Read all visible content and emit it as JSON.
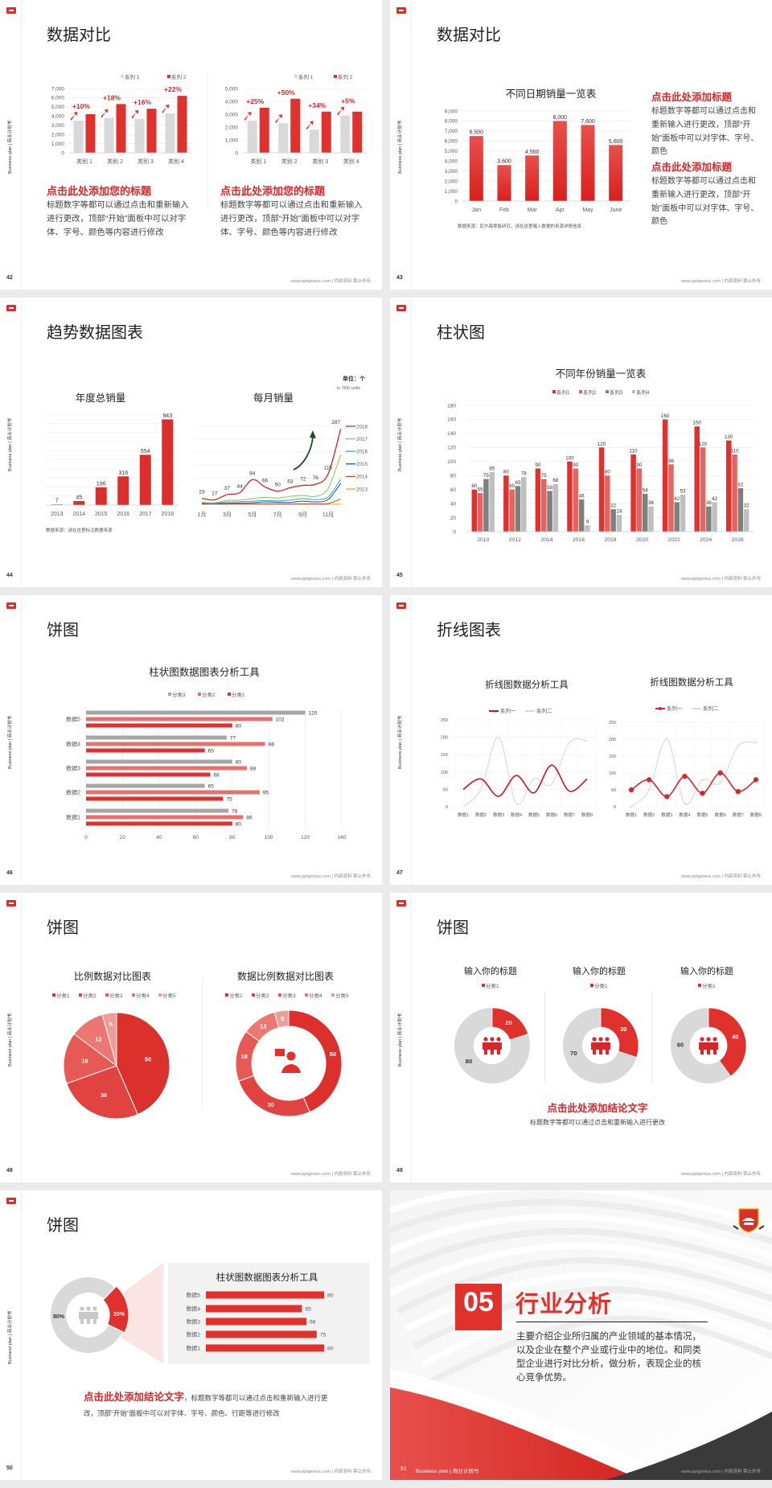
{
  "deck": {
    "sidebar": "Business plan | 商业计划书",
    "footer": "www.pptgenius.com | 内部资料 禁止外传",
    "colors": {
      "accent": "#e0312d",
      "gray": "#d9d9d9",
      "dark": "#3a3a3a"
    }
  },
  "slides": [
    {
      "page": "42",
      "title": "数据对比",
      "heading_left": "点击此处添加您的标题",
      "body_left": "标题数字等都可以通过点击和重新输入进行更改，顶部“开始”面板中可以对字体、字号、颜色等内容进行修改",
      "heading_right": "点击此处添加您的标题",
      "body_right": "标题数字等都可以通过点击和重新输入进行更改，顶部“开始”面板中可以对字体、字号、颜色等内容进行修改"
    },
    {
      "page": "43",
      "title": "数据对比",
      "heading_1": "点击此处添加标题",
      "body_1": "标题数字等都可以通过点击和重新输入进行更改，顶部“开始”面板中可以对字体、字号、颜色",
      "heading_2": "点击此处添加标题",
      "body_2": "标题数字等都可以通过点击和重新输入进行更改，顶部“开始”面板中可以对字体、字号、颜色",
      "source": "数据来源：尼尔森零售研究，请在这里输入数据的来源详情信息"
    },
    {
      "page": "44",
      "title": "趋势数据图表",
      "unit": "单位：个",
      "unit_sub": "in '000 units",
      "source": "数据来源：请在这里标注数据来源"
    },
    {
      "page": "45",
      "title": "柱状图"
    },
    {
      "page": "46",
      "title": "饼图"
    },
    {
      "page": "47",
      "title": "折线图表"
    },
    {
      "page": "48",
      "title": "饼图"
    },
    {
      "page": "49",
      "title": "饼图",
      "conclusion": "点击此处添加结论文字",
      "conclusion_body": "标题数字等都可以通过点击和重新输入进行更改"
    },
    {
      "page": "50",
      "title": "饼图",
      "conclusion": "点击此处添加结论文字",
      "conclusion_body": "，标题数字等都可以通过点击和重新输入进行更改，顶部“开始”面板中可以对字体、字号、颜色、行距等进行修改"
    },
    {
      "page": "51",
      "section_number": "05",
      "title": "行业分析",
      "body": "主要介绍企业所归属的产业领域的基本情况，以及企业在整个产业或行业中的地位。和同类型企业进行对比分析，做分析，表现企业的核心竞争优势。",
      "footer_label": "Business plan | 商业计划书"
    }
  ],
  "chart_data": [
    {
      "type": "bar",
      "categories": [
        "类别 1",
        "类别 2",
        "类别 3",
        "类别 4"
      ],
      "series": [
        {
          "name": "系列 1",
          "color": "#d9d9d9",
          "values": [
            3500,
            3800,
            3700,
            4300
          ]
        },
        {
          "name": "系列 2",
          "color": "#e0312d",
          "values": [
            4200,
            5300,
            4800,
            6200
          ]
        }
      ],
      "ylim": [
        0,
        7000
      ],
      "y_ticks": [
        "0",
        "1,000",
        "2,000",
        "3,000",
        "4,000",
        "5,000",
        "6,000",
        "7,000"
      ],
      "annotations": [
        "+10%",
        "+18%",
        "+16%",
        "+22%"
      ],
      "legend": "top-right",
      "grid": true
    },
    {
      "type": "bar",
      "categories": [
        "类别 1",
        "类别 2",
        "类别 3",
        "类别 4"
      ],
      "series": [
        {
          "name": "系列 1",
          "color": "#d9d9d9",
          "values": [
            2500,
            2300,
            1800,
            2900
          ]
        },
        {
          "name": "系列 2",
          "color": "#e0312d",
          "values": [
            3500,
            4200,
            3200,
            3200
          ]
        }
      ],
      "ylim": [
        0,
        5000
      ],
      "y_ticks": [
        "0",
        "1,000",
        "2,000",
        "3,000",
        "4,000",
        "5,000"
      ],
      "annotations": [
        "+25%",
        "+50%",
        "+34%",
        "+5%"
      ],
      "legend": "top-right",
      "grid": true
    },
    {
      "type": "bar",
      "title": "不同日期销量一览表",
      "categories": [
        "Jan",
        "Feb",
        "Mar",
        "Apr",
        "May",
        "June"
      ],
      "series": [
        {
          "color": "#e0312d",
          "values": [
            6500,
            3600,
            4560,
            8000,
            7600,
            5600
          ],
          "data_labels": [
            "6,500",
            "3,600",
            "4,560",
            "8,000",
            "7,600",
            "5,600"
          ]
        }
      ],
      "ylim": [
        0,
        9000
      ],
      "y_ticks": [
        "0",
        "1,000",
        "2,000",
        "3,000",
        "4,000",
        "5,000",
        "6,000",
        "7,000",
        "8,000",
        "9,000"
      ],
      "grid": true
    },
    {
      "type": "bar",
      "title": "年度总销量",
      "categories": [
        "2013",
        "2014",
        "2015",
        "2016",
        "2017",
        "2018"
      ],
      "series": [
        {
          "color": "#dc2f2b",
          "values": [
            7,
            45,
            196,
            316,
            554,
            943
          ],
          "data_labels": [
            "7",
            "45",
            "196",
            "316",
            "554",
            "943"
          ]
        }
      ],
      "ylim": [
        0,
        1000
      ],
      "grid": true
    },
    {
      "type": "line",
      "title": "每月销量",
      "x_ticks": [
        "1月",
        "3月",
        "5月",
        "7月",
        "9月",
        "11月"
      ],
      "series": [
        {
          "name": "2018",
          "color": "#d7262b",
          "values": [
            23,
            17,
            37,
            44,
            94,
            66,
            50,
            63,
            72,
            76,
            115,
            287
          ],
          "data_labels": [
            "23",
            "17",
            "37",
            "44",
            "94",
            "66",
            "50",
            "63",
            "72",
            "76",
            "115",
            "287"
          ]
        },
        {
          "name": "2017",
          "color": "#8dc63f",
          "values": [
            8,
            6,
            15,
            16,
            22,
            26,
            24,
            30,
            34,
            30,
            60,
            190
          ]
        },
        {
          "name": "2016",
          "color": "#29abe2",
          "values": [
            5,
            4,
            9,
            10,
            12,
            14,
            13,
            16,
            22,
            18,
            28,
            95
          ]
        },
        {
          "name": "2015",
          "color": "#1f4e9c",
          "values": [
            3,
            3,
            4,
            5,
            6,
            9,
            8,
            7,
            12,
            9,
            18,
            80
          ]
        },
        {
          "name": "2014",
          "color": "#b5502e",
          "values": [
            1,
            1,
            1,
            1,
            2,
            2,
            2,
            1,
            2,
            2,
            3,
            20
          ]
        },
        {
          "name": "2013",
          "color": "#f7a823",
          "values": [
            0,
            0,
            0,
            0,
            0,
            0,
            0,
            0,
            0,
            0,
            0,
            1
          ]
        }
      ],
      "legend": "right",
      "grid": true
    },
    {
      "type": "bar",
      "title": "不同年份销量一览表",
      "categories": [
        "2010",
        "2012",
        "2014",
        "2016",
        "2018",
        "2020",
        "2022",
        "2024",
        "2026"
      ],
      "series": [
        {
          "name": "系列1",
          "color": "#e0312d",
          "values": [
            60,
            80,
            90,
            100,
            120,
            110,
            160,
            150,
            130
          ]
        },
        {
          "name": "系列2",
          "color": "#e8625e",
          "values": [
            55,
            60,
            75,
            90,
            80,
            90,
            96,
            120,
            110
          ]
        },
        {
          "name": "系列3",
          "color": "#7f7f7f",
          "values": [
            75,
            65,
            58,
            46,
            32,
            54,
            42,
            36,
            62
          ]
        },
        {
          "name": "系列4",
          "color": "#bfbfbf",
          "values": [
            85,
            78,
            68,
            9,
            24,
            36,
            53,
            42,
            32
          ]
        }
      ],
      "ylim": [
        0,
        180
      ],
      "y_ticks": [
        "0",
        "20",
        "40",
        "60",
        "80",
        "100",
        "120",
        "140",
        "160",
        "180"
      ],
      "legend": "top",
      "grid": true
    },
    {
      "type": "bar",
      "orientation": "horizontal",
      "title": "柱状图数据图表分析工具",
      "categories": [
        "数据1",
        "数据2",
        "数据3",
        "数据4",
        "数据5"
      ],
      "series": [
        {
          "name": "分类1",
          "color": "#e0312d",
          "values": [
            80,
            75,
            68,
            65,
            80
          ]
        },
        {
          "name": "分类2",
          "color": "#e8706c",
          "values": [
            86,
            95,
            88,
            98,
            102
          ]
        },
        {
          "name": "分类3",
          "color": "#a6a6a6",
          "values": [
            78,
            65,
            80,
            77,
            120
          ]
        }
      ],
      "xlim": [
        0,
        140
      ],
      "x_ticks": [
        "0",
        "20",
        "40",
        "60",
        "80",
        "100",
        "120",
        "140"
      ],
      "legend": "top",
      "grid": true
    },
    {
      "type": "line",
      "title": "折线图数据分析工具",
      "categories": [
        "数据1",
        "数据2",
        "数据3",
        "数据4",
        "数据5",
        "数据6",
        "数据7",
        "数据8"
      ],
      "series": [
        {
          "name": "系列一",
          "color": "#c8161d",
          "values": [
            50,
            80,
            30,
            90,
            40,
            120,
            45,
            80
          ]
        },
        {
          "name": "系列二",
          "color": "#e3e3e3",
          "values": [
            0,
            50,
            200,
            10,
            80,
            65,
            185,
            190
          ]
        }
      ],
      "ylim": [
        0,
        250
      ],
      "y_ticks": [
        "0",
        "50",
        "100",
        "150",
        "200",
        "250"
      ],
      "smooth": true,
      "legend": "top",
      "grid": true
    },
    {
      "type": "line",
      "title": "折线图数据分析工具",
      "categories": [
        "数据1",
        "数据2",
        "数据3",
        "数据4",
        "数据5",
        "数据6",
        "数据7",
        "数据8"
      ],
      "series": [
        {
          "name": "系列一",
          "color": "#d9262a",
          "values": [
            50,
            80,
            30,
            90,
            40,
            100,
            45,
            80
          ]
        },
        {
          "name": "系列二",
          "color": "#e3e3e3",
          "values": [
            0,
            50,
            200,
            10,
            80,
            70,
            180,
            190
          ]
        }
      ],
      "ylim": [
        0,
        250
      ],
      "y_ticks": [
        "0",
        "50",
        "100",
        "150",
        "200",
        "250"
      ],
      "smooth": true,
      "markers": true,
      "legend": "top",
      "grid": true
    },
    {
      "type": "pie",
      "title": "比例数据对比图表",
      "categories": [
        "分类1",
        "分类2",
        "分类3",
        "分类4",
        "分类5"
      ],
      "values": [
        50,
        30,
        18,
        12,
        5
      ],
      "colors": [
        "#dc302c",
        "#e14440",
        "#e65955",
        "#eb7773",
        "#f09c99"
      ],
      "legend": "top"
    },
    {
      "type": "pie",
      "donut": true,
      "title": "数据比例数据对比图表",
      "categories": [
        "分类1",
        "分类2",
        "分类3",
        "分类4",
        "分类5"
      ],
      "values": [
        50,
        30,
        18,
        12,
        5
      ],
      "colors": [
        "#dc302c",
        "#e14440",
        "#e65955",
        "#eb7773",
        "#f09c99"
      ],
      "legend": "top"
    },
    {
      "type": "pie",
      "donut": true,
      "title": "输入你的标题",
      "legend_label": "分类1",
      "values": [
        20,
        80
      ],
      "colors": [
        "#e0312d",
        "#d9d9d9"
      ]
    },
    {
      "type": "pie",
      "donut": true,
      "title": "输入你的标题",
      "legend_label": "分类1",
      "values": [
        30,
        70
      ],
      "colors": [
        "#e0312d",
        "#d9d9d9"
      ]
    },
    {
      "type": "pie",
      "donut": true,
      "title": "输入你的标题",
      "legend_label": "分类1",
      "values": [
        40,
        60
      ],
      "colors": [
        "#e0312d",
        "#d9d9d9"
      ]
    },
    {
      "type": "pie",
      "donut": true,
      "values": [
        20,
        80
      ],
      "data_labels": [
        "20%",
        "80%"
      ],
      "colors": [
        "#e0312d",
        "#d9d9d9"
      ]
    },
    {
      "type": "bar",
      "orientation": "horizontal",
      "title": "柱状图数据图表分析工具",
      "categories": [
        "数据1",
        "数据2",
        "数据3",
        "数据4",
        "数据5"
      ],
      "series": [
        {
          "color": "#e0312d",
          "values": [
            80,
            75,
            68,
            65,
            80
          ]
        }
      ],
      "xlim": [
        0,
        80
      ]
    }
  ]
}
